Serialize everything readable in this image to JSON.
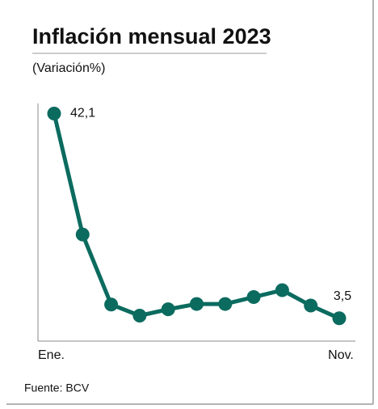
{
  "chart_data": {
    "type": "line",
    "title": "Inflación  mensual 2023",
    "subtitle": "(Variación%)",
    "source": "Fuente: BCV",
    "categories": [
      "Ene.",
      null,
      null,
      null,
      null,
      null,
      null,
      null,
      null,
      null,
      "Nov."
    ],
    "values": [
      42.1,
      19.3,
      6.1,
      4.0,
      5.2,
      6.2,
      6.2,
      7.5,
      8.8,
      5.9,
      3.5
    ],
    "value_labels": [
      "42,1",
      null,
      null,
      null,
      null,
      null,
      null,
      null,
      null,
      null,
      "3,5"
    ],
    "color": "#0b6b5f",
    "ylim": [
      -0.8,
      44
    ]
  }
}
